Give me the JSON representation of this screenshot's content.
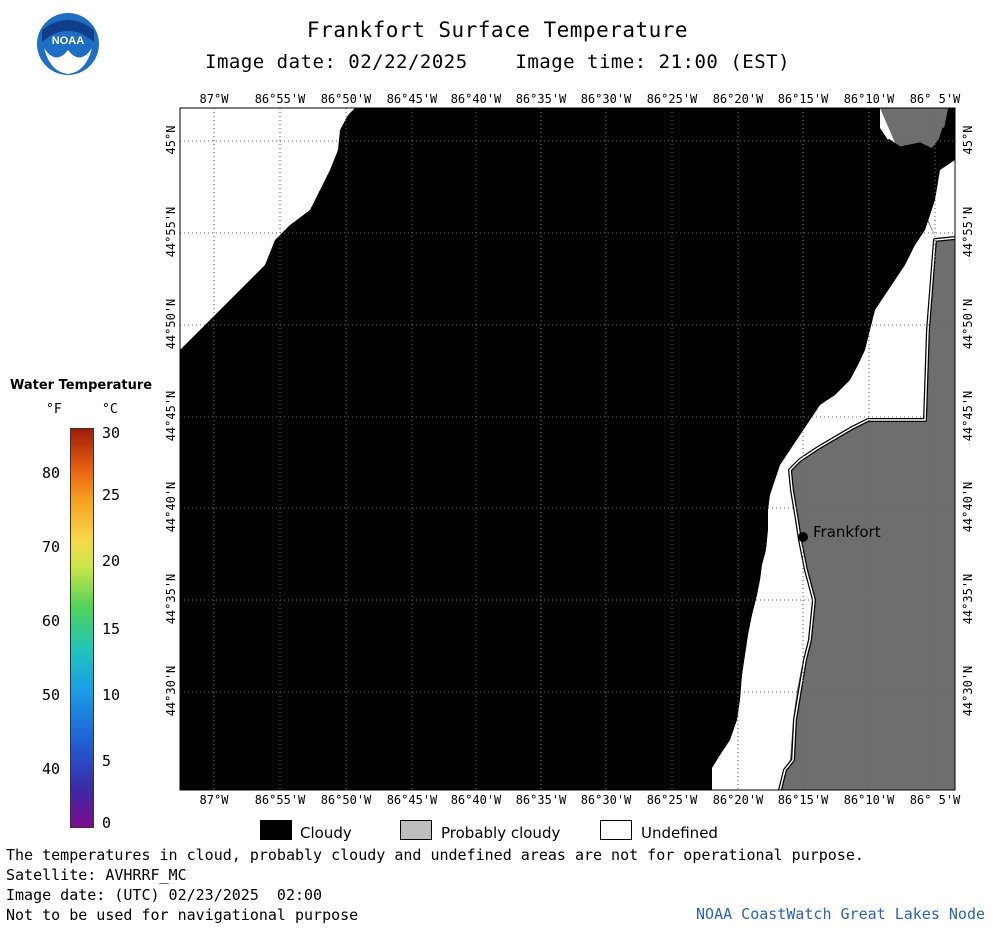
{
  "header": {
    "title": "Frankfort Surface Temperature",
    "subtitle": "Image date: 02/22/2025    Image time: 21:00 (EST)"
  },
  "logo": {
    "text": "NOAA"
  },
  "map": {
    "lon_labels": [
      "87°W",
      "86°55'W",
      "86°50'W",
      "86°45'W",
      "86°40'W",
      "86°35'W",
      "86°30'W",
      "86°25'W",
      "86°20'W",
      "86°15'W",
      "86°10'W",
      "86° 5'W"
    ],
    "lat_labels": [
      "45°N",
      "44°55'N",
      "44°50'N",
      "44°45'N",
      "44°40'N",
      "44°35'N",
      "44°30'N"
    ],
    "city": {
      "name": "Frankfort"
    },
    "colors": {
      "cloudy": "#000000",
      "probably_cloudy": "#6e6e6e",
      "undefined": "#ffffff"
    }
  },
  "legend": {
    "title": "Water Temperature",
    "unit_f": "°F",
    "unit_c": "°C",
    "f_ticks": [
      "80",
      "70",
      "60",
      "50",
      "40"
    ],
    "c_ticks": [
      "30",
      "25",
      "20",
      "15",
      "10",
      "5",
      "0"
    ]
  },
  "key": {
    "cloudy": "Cloudy",
    "probably_cloudy": "Probably cloudy",
    "undefined": "Undefined"
  },
  "footer": {
    "disclaimer": "The temperatures in cloud, probably cloudy and undefined areas are not for operational purpose.",
    "satellite": "Satellite: AVHRRF_MC",
    "utc_date": "Image date: (UTC) 02/23/2025  02:00",
    "nav": "Not to be used for navigational purpose",
    "credit": "NOAA CoastWatch Great Lakes Node"
  }
}
